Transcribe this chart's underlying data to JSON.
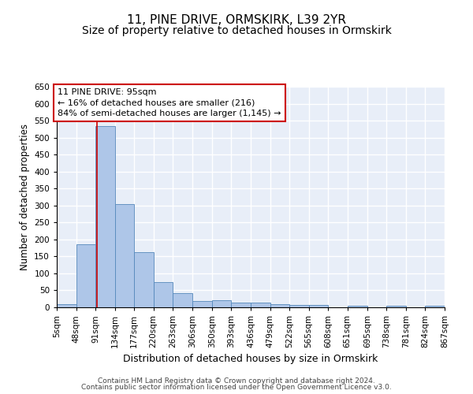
{
  "title": "11, PINE DRIVE, ORMSKIRK, L39 2YR",
  "subtitle": "Size of property relative to detached houses in Ormskirk",
  "xlabel": "Distribution of detached houses by size in Ormskirk",
  "ylabel": "Number of detached properties",
  "bar_values": [
    10,
    185,
    535,
    305,
    163,
    75,
    42,
    18,
    20,
    13,
    13,
    10,
    8,
    8,
    0,
    5,
    0,
    5,
    0,
    5
  ],
  "bin_edges": [
    5,
    48,
    91,
    134,
    177,
    220,
    263,
    306,
    350,
    393,
    436,
    479,
    522,
    565,
    608,
    651,
    695,
    738,
    781,
    824,
    867
  ],
  "tick_labels": [
    "5sqm",
    "48sqm",
    "91sqm",
    "134sqm",
    "177sqm",
    "220sqm",
    "263sqm",
    "306sqm",
    "350sqm",
    "393sqm",
    "436sqm",
    "479sqm",
    "522sqm",
    "565sqm",
    "608sqm",
    "651sqm",
    "695sqm",
    "738sqm",
    "781sqm",
    "824sqm",
    "867sqm"
  ],
  "bar_color": "#aec6e8",
  "bar_edge_color": "#5588bb",
  "background_color": "#e8eef8",
  "grid_color": "#ffffff",
  "annotation_box_color": "#cc0000",
  "annotation_line1": "11 PINE DRIVE: 95sqm",
  "annotation_line2": "← 16% of detached houses are smaller (216)",
  "annotation_line3": "84% of semi-detached houses are larger (1,145) →",
  "vline_x": 95,
  "vline_color": "#cc0000",
  "ylim": [
    0,
    650
  ],
  "yticks": [
    0,
    50,
    100,
    150,
    200,
    250,
    300,
    350,
    400,
    450,
    500,
    550,
    600,
    650
  ],
  "footer_line1": "Contains HM Land Registry data © Crown copyright and database right 2024.",
  "footer_line2": "Contains public sector information licensed under the Open Government Licence v3.0.",
  "title_fontsize": 11,
  "subtitle_fontsize": 10,
  "xlabel_fontsize": 9,
  "ylabel_fontsize": 8.5,
  "tick_fontsize": 7.5,
  "annotation_fontsize": 8,
  "footer_fontsize": 6.5
}
